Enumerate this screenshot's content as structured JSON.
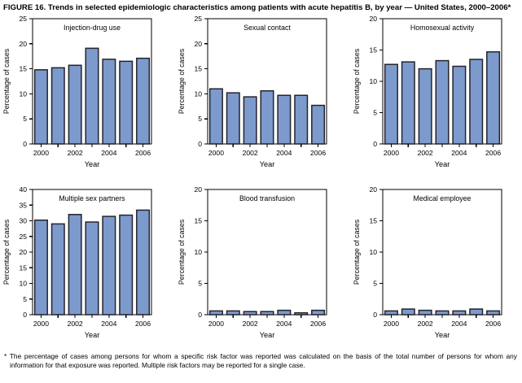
{
  "figure": {
    "title": "FIGURE 16. Trends in selected epidemiologic characteristics among patients with acute hepatitis B, by year — United States, 2000–2006*",
    "footnote": "* The percentage of cases among persons for whom a specific risk factor was reported was calculated on the basis of the total number of persons for whom any information for that exposure was reported. Multiple risk factors may be reported for a single case."
  },
  "colors": {
    "bar_fill": "#7d9acd",
    "bar_stroke": "#23232b",
    "axis": "#000000",
    "text": "#000000",
    "background": "#ffffff"
  },
  "chart_data": [
    {
      "type": "bar",
      "title": "Injection-drug use",
      "categories": [
        "2000",
        "2001",
        "2002",
        "2003",
        "2004",
        "2005",
        "2006"
      ],
      "values": [
        14.8,
        15.2,
        15.7,
        19.1,
        16.9,
        16.5,
        17.1
      ],
      "xlabel": "Year",
      "ylabel": "Percentage of cases",
      "ylim": [
        0,
        25
      ],
      "ytick_step": 5,
      "xtick_labels": [
        "2000",
        "2002",
        "2004",
        "2006"
      ],
      "grid": false,
      "legend": "none"
    },
    {
      "type": "bar",
      "title": "Sexual contact",
      "categories": [
        "2000",
        "2001",
        "2002",
        "2003",
        "2004",
        "2005",
        "2006"
      ],
      "values": [
        11.0,
        10.2,
        9.4,
        10.6,
        9.7,
        9.7,
        7.7
      ],
      "xlabel": "Year",
      "ylabel": "Percentage of cases",
      "ylim": [
        0,
        25
      ],
      "ytick_step": 5,
      "xtick_labels": [
        "2000",
        "2002",
        "2004",
        "2006"
      ],
      "grid": false,
      "legend": "none"
    },
    {
      "type": "bar",
      "title": "Homosexual activity",
      "categories": [
        "2000",
        "2001",
        "2002",
        "2003",
        "2004",
        "2005",
        "2006"
      ],
      "values": [
        12.7,
        13.1,
        12.0,
        13.3,
        12.4,
        13.5,
        14.7
      ],
      "xlabel": "Year",
      "ylabel": "Percentage of cases",
      "ylim": [
        0,
        20
      ],
      "ytick_step": 5,
      "xtick_labels": [
        "2000",
        "2002",
        "2004",
        "2006"
      ],
      "grid": false,
      "legend": "none"
    },
    {
      "type": "bar",
      "title": "Multiple sex partners",
      "categories": [
        "2000",
        "2001",
        "2002",
        "2003",
        "2004",
        "2005",
        "2006"
      ],
      "values": [
        30.2,
        29.0,
        32.0,
        29.6,
        31.4,
        31.8,
        33.4
      ],
      "xlabel": "Year",
      "ylabel": "Percentage of cases",
      "ylim": [
        0,
        40
      ],
      "ytick_step": 5,
      "xtick_labels": [
        "2000",
        "2002",
        "2004",
        "2006"
      ],
      "grid": false,
      "legend": "none"
    },
    {
      "type": "bar",
      "title": "Blood transfusion",
      "categories": [
        "2000",
        "2001",
        "2002",
        "2003",
        "2004",
        "2005",
        "2006"
      ],
      "values": [
        0.6,
        0.6,
        0.5,
        0.5,
        0.7,
        0.3,
        0.7
      ],
      "xlabel": "Year",
      "ylabel": "Percentage of cases",
      "ylim": [
        0,
        20
      ],
      "ytick_step": 5,
      "xtick_labels": [
        "2000",
        "2002",
        "2004",
        "2006"
      ],
      "grid": false,
      "legend": "none"
    },
    {
      "type": "bar",
      "title": "Medical employee",
      "categories": [
        "2000",
        "2001",
        "2002",
        "2003",
        "2004",
        "2005",
        "2006"
      ],
      "values": [
        0.6,
        0.9,
        0.7,
        0.6,
        0.6,
        0.9,
        0.6
      ],
      "xlabel": "Year",
      "ylabel": "Percentage of cases",
      "ylim": [
        0,
        20
      ],
      "ytick_step": 5,
      "xtick_labels": [
        "2000",
        "2002",
        "2004",
        "2006"
      ],
      "grid": false,
      "legend": "none"
    }
  ]
}
